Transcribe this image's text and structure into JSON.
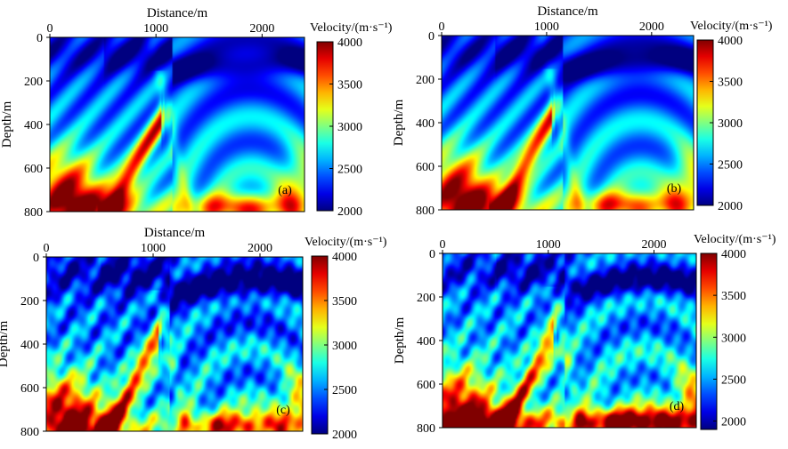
{
  "chart_data": [
    {
      "type": "heatmap",
      "panel_label": "(a)",
      "xlabel": "Distance/m",
      "ylabel": "Depth/m",
      "x_ticks": [
        0,
        1000,
        2000
      ],
      "y_ticks": [
        0,
        200,
        400,
        600,
        800
      ],
      "xlim": [
        0,
        2400
      ],
      "ylim": [
        0,
        800
      ],
      "colorbar": {
        "title": "Velocity/(m·s⁻¹)",
        "ticks": [
          2000,
          2500,
          3000,
          3500,
          4000
        ],
        "range": [
          2000,
          4000
        ]
      },
      "features": {
        "salt_flank_peak_velocity": 3900,
        "basin_floor_velocity": 3700,
        "near_surface_velocity": 2300
      }
    },
    {
      "type": "heatmap",
      "panel_label": "(b)",
      "xlabel": "Distance/m",
      "ylabel": "Depth/m",
      "x_ticks": [
        0,
        1000,
        2000
      ],
      "y_ticks": [
        0,
        200,
        400,
        600,
        800
      ],
      "xlim": [
        0,
        2400
      ],
      "ylim": [
        0,
        800
      ],
      "colorbar": {
        "title": "Velocity/(m·s⁻¹)",
        "ticks": [
          2000,
          2500,
          3000,
          3500,
          4000
        ],
        "range": [
          2000,
          4000
        ]
      },
      "features": {
        "salt_flank_peak_velocity": 3900,
        "basin_floor_velocity": 3700,
        "near_surface_velocity": 2300
      }
    },
    {
      "type": "heatmap",
      "panel_label": "(c)",
      "xlabel": "Distance/m",
      "ylabel": "Depth/m",
      "x_ticks": [
        0,
        1000,
        2000
      ],
      "y_ticks": [
        0,
        200,
        400,
        600,
        800
      ],
      "xlim": [
        0,
        2400
      ],
      "ylim": [
        0,
        800
      ],
      "colorbar": {
        "title": "Velocity/(m·s⁻¹)",
        "ticks": [
          2000,
          2500,
          3000,
          3500,
          4000
        ],
        "range": [
          2000,
          4000
        ]
      },
      "features": {
        "salt_flank_peak_velocity": 3850,
        "basin_floor_velocity": 3800,
        "near_surface_velocity": 2350
      }
    },
    {
      "type": "heatmap",
      "panel_label": "(d)",
      "xlabel": "",
      "ylabel": "Depth/m",
      "x_ticks": [
        0,
        1000,
        2000
      ],
      "y_ticks": [
        0,
        200,
        400,
        600,
        800
      ],
      "xlim": [
        0,
        2400
      ],
      "ylim": [
        0,
        800
      ],
      "colorbar": {
        "title": "Velocity/(m·s⁻¹)",
        "ticks": [
          2000,
          2500,
          3000,
          3500,
          4000
        ],
        "range": [
          1900,
          4000
        ]
      },
      "features": {
        "salt_flank_peak_velocity": 3800,
        "basin_floor_velocity": 3900,
        "near_surface_velocity": 2350
      }
    }
  ]
}
